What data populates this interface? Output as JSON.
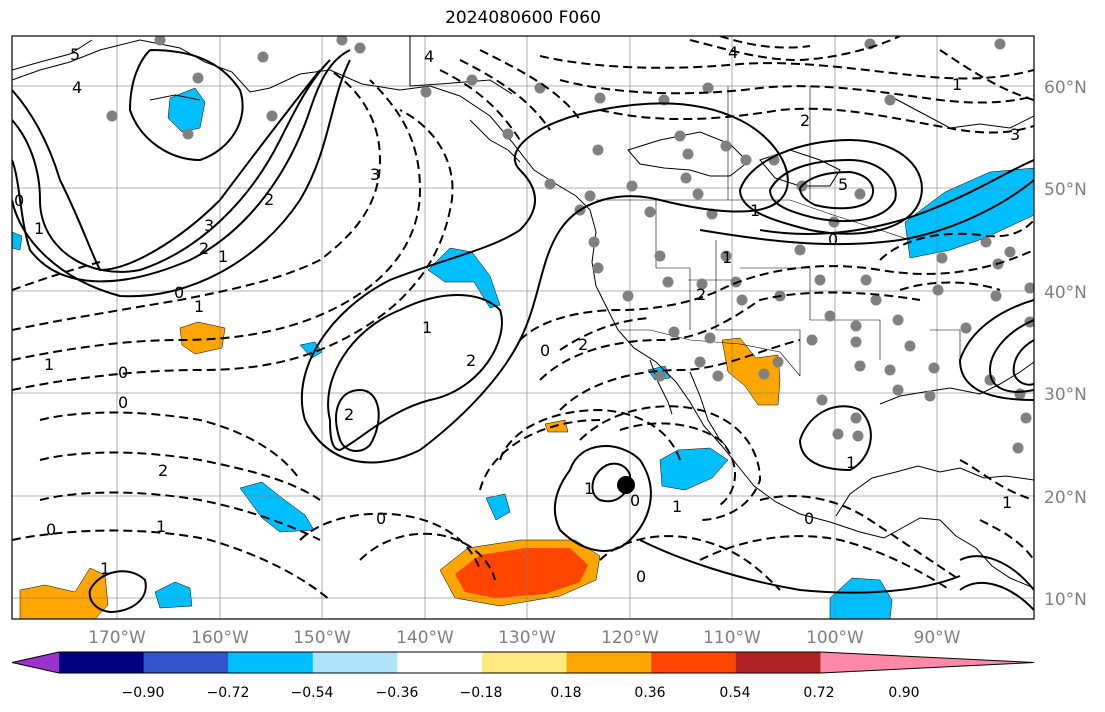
{
  "title": "2024080600 F060",
  "lat_labels": [
    "60°N",
    "50°N",
    "40°N",
    "30°N",
    "20°N",
    "10°N"
  ],
  "lon_labels": [
    "170°W",
    "160°W",
    "150°W",
    "140°W",
    "130°W",
    "120°W",
    "110°W",
    "100°W",
    "90°W"
  ],
  "colorbar": {
    "tick_labels": [
      "−0.90",
      "−0.72",
      "−0.54",
      "−0.36",
      "−0.18",
      "0.18",
      "0.36",
      "0.54",
      "0.72",
      "0.90"
    ],
    "colors": [
      "#9933cc",
      "#000080",
      "#3355cc",
      "#00bfff",
      "#aee3fb",
      "#ffffff",
      "#ffea80",
      "#ffa500",
      "#ff4500",
      "#b22222",
      "#ff88aa"
    ]
  },
  "contour_labels": [
    "5",
    "4",
    "0",
    "1",
    "3",
    "2",
    "2",
    "1",
    "0",
    "1",
    "0",
    "0",
    "2",
    "1",
    "0",
    "1",
    "2",
    "2",
    "1",
    "0",
    "2",
    "1",
    "3",
    "4",
    "5",
    "2",
    "1",
    "0",
    "1",
    "2",
    "1",
    "0",
    "0",
    "1",
    "0",
    "1",
    "0",
    "1",
    "3",
    "4",
    "1"
  ],
  "fill_colors": {
    "negative": "#00bfff",
    "positive_low": "#ffa500",
    "positive_high": "#ff4500"
  }
}
